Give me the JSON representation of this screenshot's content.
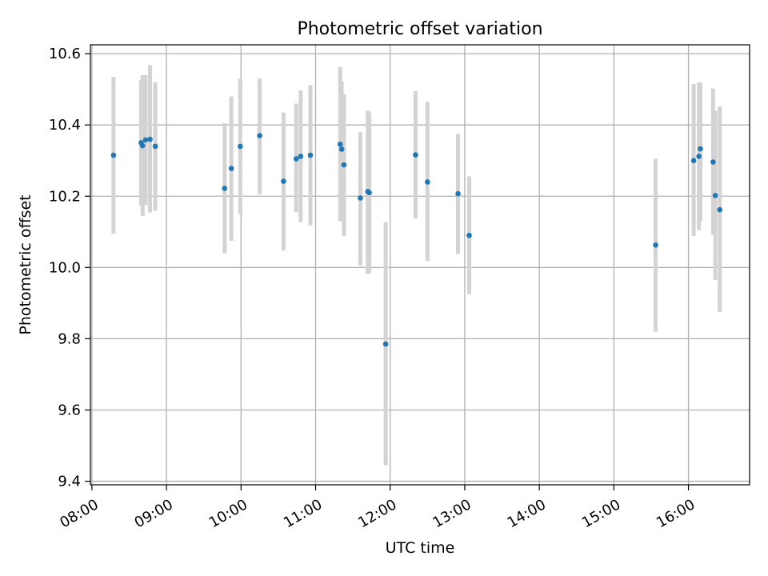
{
  "chart_data": {
    "type": "scatter",
    "title": "Photometric offset variation",
    "xlabel": "UTC time",
    "ylabel": "Photometric offset",
    "x_unit": "hours (UTC)",
    "xlim": [
      7.98,
      16.82
    ],
    "ylim": [
      9.39,
      10.625
    ],
    "xticks": [
      {
        "value": 8,
        "label": "08:00"
      },
      {
        "value": 9,
        "label": "09:00"
      },
      {
        "value": 10,
        "label": "10:00"
      },
      {
        "value": 11,
        "label": "11:00"
      },
      {
        "value": 12,
        "label": "12:00"
      },
      {
        "value": 13,
        "label": "13:00"
      },
      {
        "value": 14,
        "label": "14:00"
      },
      {
        "value": 15,
        "label": "15:00"
      },
      {
        "value": 16,
        "label": "16:00"
      }
    ],
    "yticks": [
      {
        "value": 9.4,
        "label": "9.4"
      },
      {
        "value": 9.6,
        "label": "9.6"
      },
      {
        "value": 9.8,
        "label": "9.8"
      },
      {
        "value": 10.0,
        "label": "10.0"
      },
      {
        "value": 10.2,
        "label": "10.2"
      },
      {
        "value": 10.4,
        "label": "10.4"
      },
      {
        "value": 10.6,
        "label": "10.6"
      }
    ],
    "grid": true,
    "marker_color": "#1f77b4",
    "errorbar_color": "#d3d3d3",
    "grid_color": "#b0b0b0",
    "points": [
      {
        "x": 8.29,
        "y": 10.315,
        "lo": 10.095,
        "hi": 10.535
      },
      {
        "x": 8.66,
        "y": 10.35,
        "lo": 10.175,
        "hi": 10.525
      },
      {
        "x": 8.68,
        "y": 10.342,
        "lo": 10.145,
        "hi": 10.54
      },
      {
        "x": 8.72,
        "y": 10.358,
        "lo": 10.175,
        "hi": 10.54
      },
      {
        "x": 8.78,
        "y": 10.36,
        "lo": 10.155,
        "hi": 10.568
      },
      {
        "x": 8.85,
        "y": 10.34,
        "lo": 10.16,
        "hi": 10.52
      },
      {
        "x": 9.78,
        "y": 10.222,
        "lo": 10.04,
        "hi": 10.405
      },
      {
        "x": 9.87,
        "y": 10.278,
        "lo": 10.075,
        "hi": 10.48
      },
      {
        "x": 9.99,
        "y": 10.34,
        "lo": 10.15,
        "hi": 10.53
      },
      {
        "x": 10.25,
        "y": 10.37,
        "lo": 10.205,
        "hi": 10.53
      },
      {
        "x": 10.57,
        "y": 10.242,
        "lo": 10.048,
        "hi": 10.435
      },
      {
        "x": 10.74,
        "y": 10.305,
        "lo": 10.155,
        "hi": 10.46
      },
      {
        "x": 10.8,
        "y": 10.312,
        "lo": 10.127,
        "hi": 10.497
      },
      {
        "x": 10.93,
        "y": 10.315,
        "lo": 10.118,
        "hi": 10.512
      },
      {
        "x": 11.33,
        "y": 10.346,
        "lo": 10.13,
        "hi": 10.563
      },
      {
        "x": 11.35,
        "y": 10.332,
        "lo": 10.14,
        "hi": 10.522
      },
      {
        "x": 11.38,
        "y": 10.288,
        "lo": 10.088,
        "hi": 10.487
      },
      {
        "x": 11.6,
        "y": 10.195,
        "lo": 10.005,
        "hi": 10.38
      },
      {
        "x": 11.7,
        "y": 10.213,
        "lo": 9.982,
        "hi": 10.44
      },
      {
        "x": 11.72,
        "y": 10.21,
        "lo": 9.985,
        "hi": 10.435
      },
      {
        "x": 11.94,
        "y": 9.785,
        "lo": 9.445,
        "hi": 10.127
      },
      {
        "x": 12.34,
        "y": 10.316,
        "lo": 10.138,
        "hi": 10.495
      },
      {
        "x": 12.5,
        "y": 10.24,
        "lo": 10.018,
        "hi": 10.465
      },
      {
        "x": 12.91,
        "y": 10.207,
        "lo": 10.038,
        "hi": 10.375
      },
      {
        "x": 13.06,
        "y": 10.09,
        "lo": 9.925,
        "hi": 10.256
      },
      {
        "x": 15.56,
        "y": 10.063,
        "lo": 9.82,
        "hi": 10.305
      },
      {
        "x": 16.07,
        "y": 10.3,
        "lo": 10.088,
        "hi": 10.515
      },
      {
        "x": 16.14,
        "y": 10.312,
        "lo": 10.105,
        "hi": 10.518
      },
      {
        "x": 16.16,
        "y": 10.333,
        "lo": 10.13,
        "hi": 10.52
      },
      {
        "x": 16.33,
        "y": 10.296,
        "lo": 10.092,
        "hi": 10.502
      },
      {
        "x": 16.36,
        "y": 10.202,
        "lo": 9.965,
        "hi": 10.44
      },
      {
        "x": 16.42,
        "y": 10.162,
        "lo": 9.875,
        "hi": 10.452
      }
    ]
  }
}
